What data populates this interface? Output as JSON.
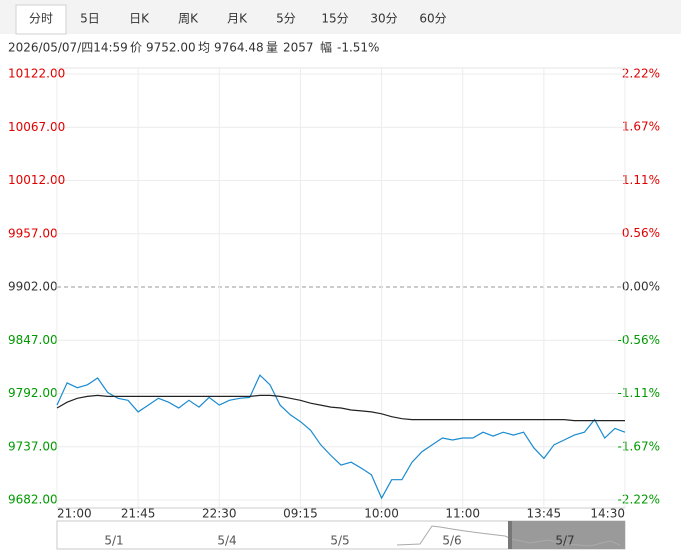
{
  "tabs": [
    "分时",
    "5日",
    "日K",
    "周K",
    "月K",
    "5分",
    "15分",
    "30分",
    "60分"
  ],
  "info": {
    "datetime": "2026/05/07/四14:59",
    "price_label": "价",
    "price": "9752.00",
    "avg_label": "均",
    "avg": "9764.48",
    "vol_label": "量",
    "vol": "2057",
    "amp_label": "幅",
    "amp": "-1.51%"
  },
  "navigator": [
    "5/1",
    "5/4",
    "5/5",
    "5/6",
    "5/7"
  ],
  "chart_data": {
    "type": "line",
    "xlim": [
      0,
      56
    ],
    "xticks": [
      {
        "value": 0,
        "label": "21:00"
      },
      {
        "value": 8,
        "label": "21:45"
      },
      {
        "value": 16,
        "label": "22:30"
      },
      {
        "value": 24,
        "label": "09:15"
      },
      {
        "value": 32,
        "label": "10:00"
      },
      {
        "value": 40,
        "label": "11:00"
      },
      {
        "value": 48,
        "label": "13:45"
      },
      {
        "value": 56,
        "label": "14:30"
      }
    ],
    "ylim": [
      9682,
      10122
    ],
    "yticks": [
      {
        "value": 10122,
        "label": "10122.00"
      },
      {
        "value": 10067,
        "label": "10067.00"
      },
      {
        "value": 10012,
        "label": "10012.00"
      },
      {
        "value": 9957,
        "label": "9957.00"
      },
      {
        "value": 9902,
        "label": "9902.00"
      },
      {
        "value": 9847,
        "label": "9847.00"
      },
      {
        "value": 9792,
        "label": "9792.00"
      },
      {
        "value": 9737,
        "label": "9737.00"
      },
      {
        "value": 9682,
        "label": "9682.00"
      }
    ],
    "y2lim": [
      -2.22,
      2.22
    ],
    "y2ticks": [
      {
        "value": 2.22,
        "label": "2.22%"
      },
      {
        "value": 1.67,
        "label": "1.67%"
      },
      {
        "value": 1.11,
        "label": "1.11%"
      },
      {
        "value": 0.56,
        "label": "0.56%"
      },
      {
        "value": 0,
        "label": "0.00%"
      },
      {
        "value": -0.56,
        "label": "-0.56%"
      },
      {
        "value": -1.11,
        "label": "-1.11%"
      },
      {
        "value": -1.67,
        "label": "-1.67%"
      },
      {
        "value": -2.22,
        "label": "-2.22%"
      }
    ],
    "grid": true,
    "up_color": "#e00000",
    "down_color": "#009900",
    "flat_color": "#333333",
    "series": [
      {
        "color": "#1a8bd0",
        "values": [
          9780,
          9803,
          9798,
          9801,
          9808,
          9793,
          9787,
          9785,
          9773,
          9780,
          9787,
          9783,
          9777,
          9785,
          9778,
          9788,
          9780,
          9785,
          9787,
          9788,
          9811,
          9801,
          9780,
          9770,
          9763,
          9754,
          9739,
          9728,
          9718,
          9721,
          9715,
          9708,
          9684,
          9703,
          9703,
          9721,
          9732,
          9739,
          9746,
          9744,
          9746,
          9746,
          9752,
          9748,
          9752,
          9749,
          9752,
          9736,
          9725,
          9739,
          9744,
          9749,
          9752,
          9765,
          9746,
          9756,
          9752
        ]
      },
      {
        "color": "#222222",
        "values": [
          9777,
          9783,
          9787,
          9789,
          9790,
          9789,
          9789,
          9789,
          9789,
          9789,
          9789,
          9789,
          9789,
          9789,
          9789,
          9789,
          9789,
          9789,
          9789,
          9789,
          9790,
          9790,
          9789,
          9787,
          9785,
          9782,
          9780,
          9778,
          9777,
          9775,
          9774,
          9773,
          9771,
          9768,
          9766,
          9765,
          9765,
          9765,
          9765,
          9765,
          9765,
          9765,
          9765,
          9765,
          9765,
          9765,
          9765,
          9765,
          9765,
          9765,
          9765,
          9764,
          9764,
          9764,
          9764,
          9764,
          9764
        ]
      }
    ]
  }
}
